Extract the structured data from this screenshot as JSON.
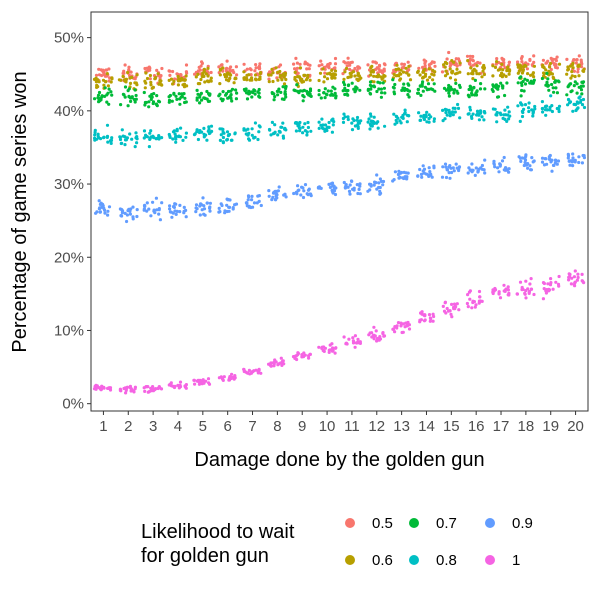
{
  "chart_data": {
    "type": "scatter",
    "jitter": true,
    "xlabel": "Damage done by the golden gun",
    "ylabel": "Percentage of game series won",
    "x": [
      1,
      2,
      3,
      4,
      5,
      6,
      7,
      8,
      9,
      10,
      11,
      12,
      13,
      14,
      15,
      16,
      17,
      18,
      19,
      20
    ],
    "xlim": [
      0.5,
      20.5
    ],
    "ylim": [
      -0.01,
      0.535
    ],
    "y_ticks": [
      0,
      0.1,
      0.2,
      0.3,
      0.4,
      0.5
    ],
    "y_tick_labels": [
      "0%",
      "10%",
      "20%",
      "30%",
      "40%",
      "50%"
    ],
    "grid": false,
    "legend": {
      "title_lines": [
        "Likelihood to wait",
        "for golden gun"
      ],
      "placement": "bottom"
    },
    "series": [
      {
        "name": "0.5",
        "color": "#F8766D",
        "values": [
          0.45,
          0.45,
          0.45,
          0.45,
          0.455,
          0.455,
          0.455,
          0.455,
          0.46,
          0.46,
          0.46,
          0.46,
          0.46,
          0.46,
          0.465,
          0.465,
          0.465,
          0.465,
          0.465,
          0.465
        ]
      },
      {
        "name": "0.6",
        "color": "#B79F00",
        "values": [
          0.44,
          0.44,
          0.44,
          0.44,
          0.445,
          0.445,
          0.445,
          0.445,
          0.445,
          0.45,
          0.45,
          0.45,
          0.45,
          0.45,
          0.455,
          0.455,
          0.455,
          0.455,
          0.455,
          0.455
        ]
      },
      {
        "name": "0.7",
        "color": "#00BA38",
        "values": [
          0.42,
          0.42,
          0.415,
          0.42,
          0.42,
          0.42,
          0.425,
          0.425,
          0.425,
          0.425,
          0.43,
          0.43,
          0.43,
          0.43,
          0.43,
          0.43,
          0.43,
          0.435,
          0.435,
          0.435
        ]
      },
      {
        "name": "0.8",
        "color": "#00BFC4",
        "values": [
          0.365,
          0.36,
          0.365,
          0.365,
          0.37,
          0.37,
          0.37,
          0.375,
          0.38,
          0.38,
          0.385,
          0.385,
          0.39,
          0.39,
          0.395,
          0.395,
          0.395,
          0.4,
          0.405,
          0.41
        ]
      },
      {
        "name": "0.9",
        "color": "#619CFF",
        "values": [
          0.265,
          0.26,
          0.265,
          0.265,
          0.27,
          0.27,
          0.275,
          0.285,
          0.29,
          0.295,
          0.295,
          0.3,
          0.31,
          0.315,
          0.32,
          0.32,
          0.325,
          0.33,
          0.33,
          0.335
        ]
      },
      {
        "name": "1",
        "color": "#F564E3",
        "values": [
          0.022,
          0.02,
          0.02,
          0.024,
          0.03,
          0.035,
          0.045,
          0.055,
          0.065,
          0.075,
          0.085,
          0.095,
          0.105,
          0.12,
          0.13,
          0.14,
          0.155,
          0.155,
          0.16,
          0.17
        ]
      }
    ]
  }
}
